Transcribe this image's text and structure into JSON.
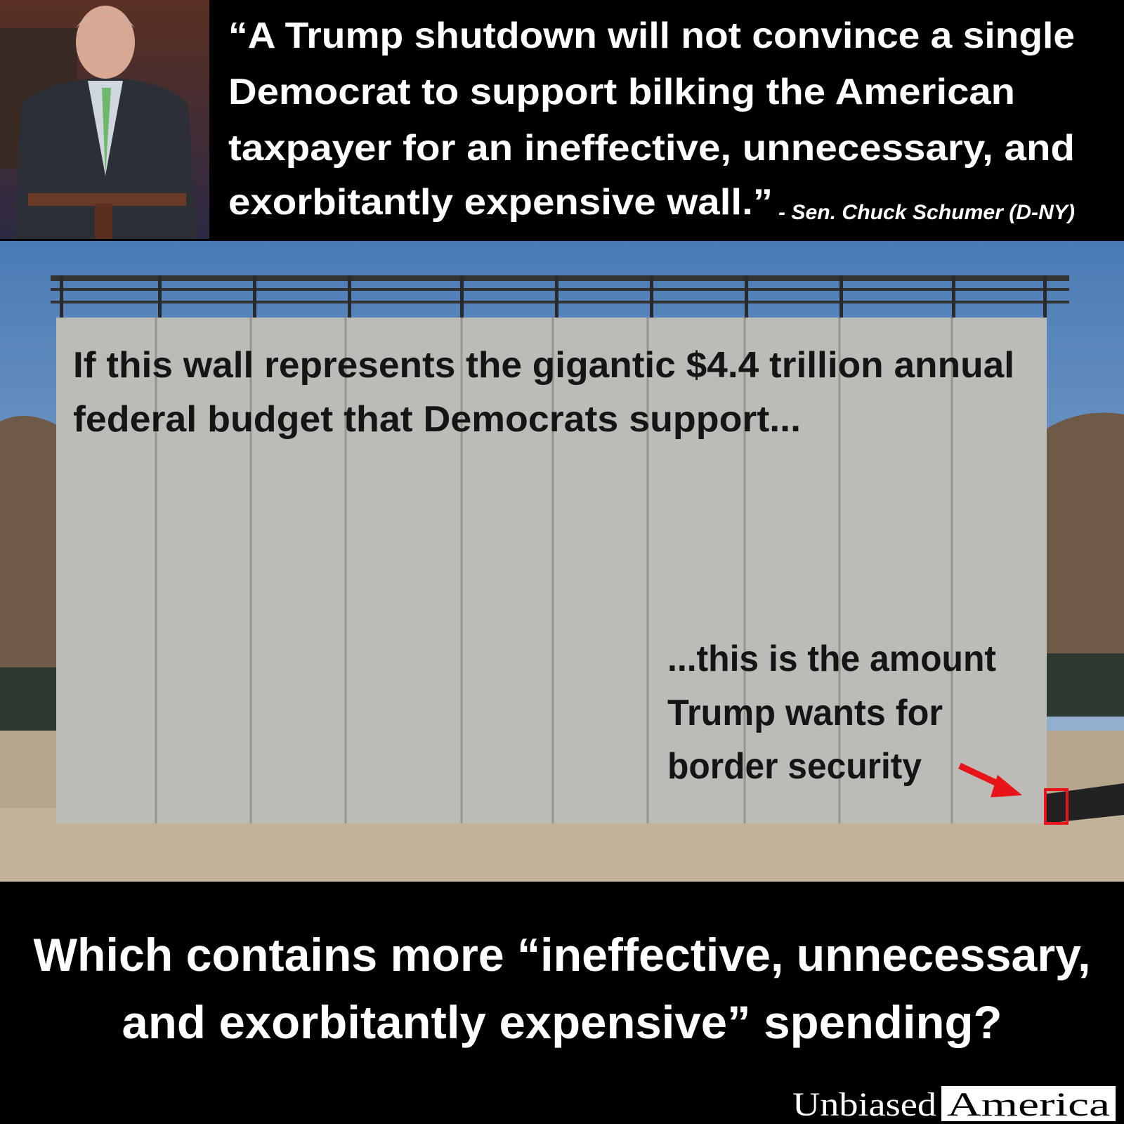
{
  "quote_lines": [
    "“A Trump shutdown will not convince a single",
    "Democrat to support bilking the American",
    "taxpayer for an ineffective, unnecessary, and",
    "exorbitantly expensive wall.”"
  ],
  "attribution": "- Sen. Chuck Schumer (D-NY)",
  "wall_caption_lines": [
    "If this wall represents the gigantic $4.4 trillion annual",
    "federal budget that Democrats support..."
  ],
  "amount_caption_lines": [
    "...this is the amount",
    "Trump wants for",
    "border security"
  ],
  "question_lines": [
    "Which contains more “ineffective, unnecessary,",
    "and exorbitantly expensive” spending?"
  ],
  "brand": {
    "first": "Unbiased",
    "second": "America"
  }
}
